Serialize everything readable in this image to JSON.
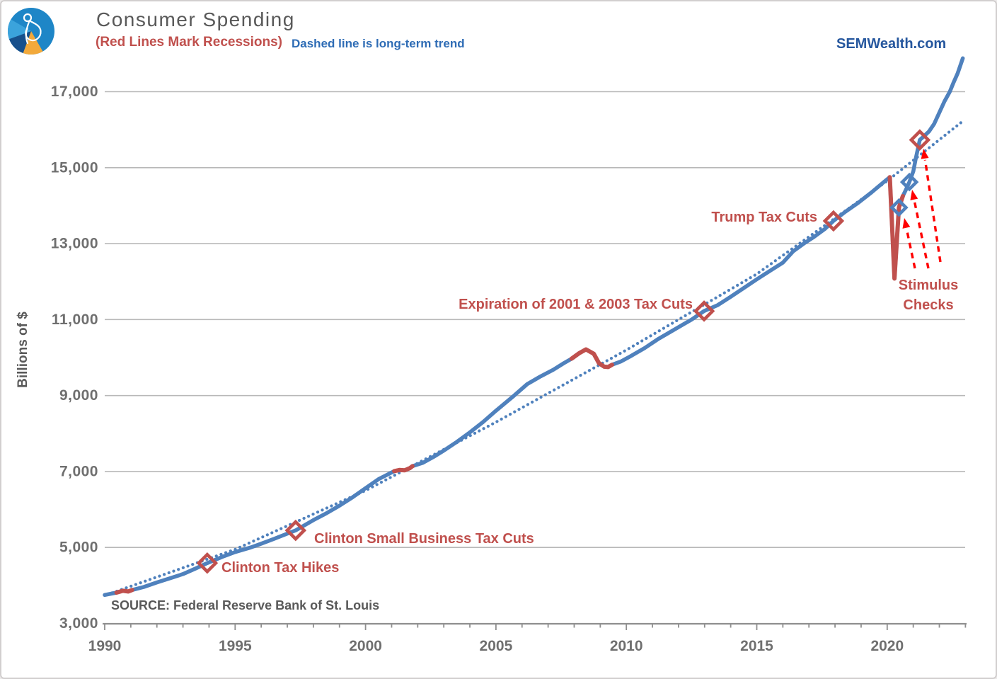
{
  "header": {
    "title": "Consumer Spending",
    "subtitle_red": "(Red Lines Mark Recessions)",
    "subtitle_blue": "Dashed line is long-term trend",
    "watermark": "SEMWealth.com"
  },
  "source_note": "SOURCE:  Federal Reserve Bank of St. Louis",
  "colors": {
    "line_blue": "#4f81bd",
    "recession_red": "#c0504d",
    "arrow_red": "#ff0000",
    "grid": "#b8b8b8",
    "axis": "#8f8f8f",
    "tick_label": "#6f6f6f",
    "title_gray": "#595959",
    "note_blue": "#2e6cb5",
    "watermark_blue": "#26579e",
    "logo_blue": "#1e86c7",
    "logo_light_blue": "#3ba3dc",
    "logo_navy": "#17508c",
    "logo_orange": "#f2a93b"
  },
  "chart_data": {
    "type": "line",
    "title": "Consumer Spending",
    "xlabel": "",
    "ylabel": "Billions of $",
    "xlim": [
      1990,
      2023
    ],
    "ylim": [
      3000,
      18000
    ],
    "grid": "horizontal",
    "x_ticks": [
      1990,
      1995,
      2000,
      2005,
      2010,
      2015,
      2020
    ],
    "x_tick_labels": [
      "1990",
      "1995",
      "2000",
      "2005",
      "2010",
      "2015",
      "2020"
    ],
    "y_ticks": [
      3000,
      5000,
      7000,
      9000,
      11000,
      13000,
      15000,
      17000
    ],
    "y_tick_labels": [
      "3,000",
      "5,000",
      "7,000",
      "9,000",
      "11,000",
      "13,000",
      "15,000",
      "17,000"
    ],
    "series": [
      {
        "name": "Consumer Spending",
        "color": "#4f81bd",
        "points": [
          [
            1990.0,
            3750
          ],
          [
            1990.45,
            3810
          ],
          [
            1990.7,
            3860
          ],
          [
            1990.9,
            3840
          ],
          [
            1991.05,
            3880
          ],
          [
            1991.5,
            3960
          ],
          [
            1992.0,
            4080
          ],
          [
            1992.5,
            4190
          ],
          [
            1993.0,
            4300
          ],
          [
            1993.5,
            4450
          ],
          [
            1993.93,
            4589
          ],
          [
            1994.5,
            4750
          ],
          [
            1995.0,
            4880
          ],
          [
            1995.6,
            5000
          ],
          [
            1996.0,
            5100
          ],
          [
            1996.5,
            5230
          ],
          [
            1997.32,
            5449
          ],
          [
            1998.0,
            5720
          ],
          [
            1998.5,
            5900
          ],
          [
            1999.0,
            6100
          ],
          [
            1999.5,
            6320
          ],
          [
            2000.0,
            6560
          ],
          [
            2000.5,
            6800
          ],
          [
            2001.1,
            7010
          ],
          [
            2001.3,
            7040
          ],
          [
            2001.5,
            7030
          ],
          [
            2001.7,
            7090
          ],
          [
            2001.8,
            7140
          ],
          [
            2002.2,
            7230
          ],
          [
            2002.6,
            7380
          ],
          [
            2003.0,
            7550
          ],
          [
            2003.5,
            7780
          ],
          [
            2004.0,
            8030
          ],
          [
            2004.5,
            8300
          ],
          [
            2005.0,
            8600
          ],
          [
            2005.7,
            9000
          ],
          [
            2006.2,
            9300
          ],
          [
            2006.7,
            9500
          ],
          [
            2007.2,
            9680
          ],
          [
            2007.6,
            9850
          ],
          [
            2007.9,
            9970
          ],
          [
            2008.2,
            10120
          ],
          [
            2008.45,
            10215
          ],
          [
            2008.75,
            10100
          ],
          [
            2008.95,
            9850
          ],
          [
            2009.15,
            9760
          ],
          [
            2009.3,
            9750
          ],
          [
            2009.45,
            9810
          ],
          [
            2009.8,
            9900
          ],
          [
            2010.2,
            10050
          ],
          [
            2010.7,
            10250
          ],
          [
            2011.2,
            10480
          ],
          [
            2011.7,
            10680
          ],
          [
            2012.2,
            10880
          ],
          [
            2012.5,
            11000
          ],
          [
            2012.98,
            11224
          ],
          [
            2013.5,
            11380
          ],
          [
            2014.0,
            11600
          ],
          [
            2014.5,
            11830
          ],
          [
            2015.0,
            12060
          ],
          [
            2015.5,
            12280
          ],
          [
            2016.0,
            12500
          ],
          [
            2016.4,
            12800
          ],
          [
            2016.8,
            13000
          ],
          [
            2017.2,
            13180
          ],
          [
            2017.6,
            13380
          ],
          [
            2017.94,
            13598
          ],
          [
            2018.4,
            13840
          ],
          [
            2018.9,
            14080
          ],
          [
            2019.4,
            14350
          ],
          [
            2019.8,
            14580
          ],
          [
            2020.1,
            14750
          ],
          [
            2020.18,
            13600
          ],
          [
            2020.28,
            12080
          ],
          [
            2020.45,
            13950
          ],
          [
            2020.6,
            14250
          ],
          [
            2020.72,
            14420
          ],
          [
            2020.85,
            14620
          ],
          [
            2021.0,
            14900
          ],
          [
            2021.1,
            15250
          ],
          [
            2021.25,
            15730
          ],
          [
            2021.4,
            15820
          ],
          [
            2021.6,
            15950
          ],
          [
            2021.8,
            16150
          ],
          [
            2022.0,
            16450
          ],
          [
            2022.2,
            16750
          ],
          [
            2022.4,
            17000
          ],
          [
            2022.55,
            17250
          ],
          [
            2022.7,
            17480
          ],
          [
            2022.9,
            17880
          ]
        ]
      },
      {
        "name": "Long-term trend",
        "style": "dotted",
        "color": "#4f81bd",
        "points": [
          [
            1990.1,
            3760
          ],
          [
            1995,
            4950
          ],
          [
            2000,
            6500
          ],
          [
            2005,
            8300
          ],
          [
            2010,
            10200
          ],
          [
            2015,
            12200
          ],
          [
            2020,
            14650
          ],
          [
            2022.95,
            16250
          ]
        ]
      }
    ],
    "recessions": {
      "color": "#c0504d",
      "intervals": [
        [
          1990.45,
          1991.05
        ],
        [
          2001.1,
          2001.8
        ],
        [
          2007.9,
          2009.45
        ],
        [
          2020.1,
          2020.6
        ]
      ]
    },
    "annotations": [
      {
        "id": "clinton-tax-hikes",
        "label": "Clinton Tax Hikes",
        "year": 1993.93,
        "value": 4589,
        "marker": "red"
      },
      {
        "id": "clinton-small-business",
        "label": "Clinton Small Business Tax Cuts",
        "year": 1997.32,
        "value": 5449,
        "marker": "red"
      },
      {
        "id": "expiration-2001-2003",
        "label": "Expiration of 2001 & 2003 Tax Cuts",
        "year": 2012.98,
        "value": 11224,
        "marker": "red"
      },
      {
        "id": "trump-tax-cuts",
        "label": "Trump Tax Cuts",
        "year": 2017.94,
        "value": 13598,
        "marker": "red"
      },
      {
        "id": "stimulus-check-1",
        "label": "",
        "year": 2020.45,
        "value": 13950,
        "marker": "blue"
      },
      {
        "id": "stimulus-check-2",
        "label": "",
        "year": 2020.85,
        "value": 14620,
        "marker": "blue"
      },
      {
        "id": "stimulus-check-3",
        "label": "",
        "year": 2021.25,
        "value": 15730,
        "marker": "red"
      }
    ],
    "stimulus_label": {
      "lines": [
        "Stimulus",
        "Checks"
      ]
    },
    "arrows": [
      {
        "from": [
          1291,
          377
        ],
        "to": [
          1276,
          306
        ]
      },
      {
        "from": [
          1310,
          377
        ],
        "to": [
          1287,
          266
        ]
      },
      {
        "from": [
          1327,
          368
        ],
        "to": [
          1303,
          208
        ]
      }
    ]
  }
}
